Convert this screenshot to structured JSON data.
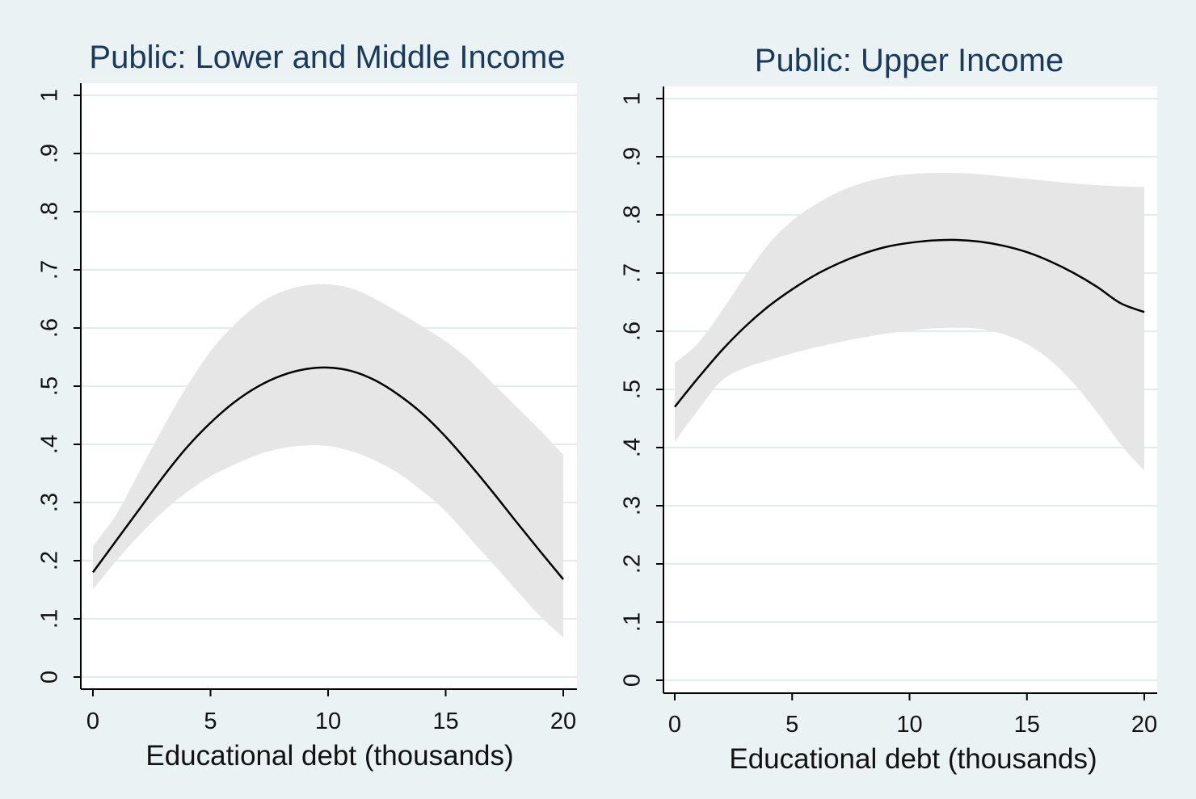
{
  "colors": {
    "background": "#eaf2f3",
    "plot_region": "#ffffff",
    "grid": "#e2ecee",
    "band": "#e6e6e6",
    "line": "#000000",
    "title": "#1a3a5c",
    "axis": "#000000"
  },
  "chart_data": [
    {
      "type": "line",
      "title": "Public: Lower and Middle Income",
      "xlabel": "Educational debt (thousands)",
      "ylabel": "",
      "xlim": [
        0,
        20
      ],
      "ylim": [
        0,
        1
      ],
      "x_ticks": [
        0,
        5,
        10,
        15,
        20
      ],
      "x_tick_labels": [
        "0",
        "5",
        "10",
        "15",
        "20"
      ],
      "y_ticks": [
        0,
        0.1,
        0.2,
        0.3,
        0.4,
        0.5,
        0.6,
        0.7,
        0.8,
        0.9,
        1
      ],
      "y_tick_labels": [
        "0",
        ".1",
        ".2",
        ".3",
        ".4",
        ".5",
        ".6",
        ".7",
        ".8",
        ".9",
        "1"
      ],
      "grid": true,
      "x": [
        0,
        1,
        2,
        3,
        4,
        5,
        6,
        7,
        8,
        9,
        10,
        11,
        12,
        13,
        14,
        15,
        16,
        17,
        18,
        19,
        20
      ],
      "series": [
        {
          "name": "estimate",
          "values": [
            0.18,
            0.235,
            0.29,
            0.345,
            0.395,
            0.437,
            0.472,
            0.499,
            0.518,
            0.529,
            0.532,
            0.526,
            0.51,
            0.485,
            0.453,
            0.413,
            0.367,
            0.318,
            0.267,
            0.217,
            0.168
          ]
        },
        {
          "name": "upper",
          "values": [
            0.225,
            0.28,
            0.355,
            0.43,
            0.5,
            0.56,
            0.605,
            0.64,
            0.662,
            0.673,
            0.675,
            0.668,
            0.65,
            0.627,
            0.603,
            0.577,
            0.545,
            0.505,
            0.465,
            0.425,
            0.382
          ]
        },
        {
          "name": "lower",
          "values": [
            0.15,
            0.2,
            0.245,
            0.285,
            0.318,
            0.345,
            0.365,
            0.382,
            0.393,
            0.398,
            0.397,
            0.388,
            0.372,
            0.35,
            0.32,
            0.285,
            0.24,
            0.195,
            0.15,
            0.105,
            0.068
          ]
        }
      ]
    },
    {
      "type": "line",
      "title": "Public: Upper Income",
      "xlabel": "Educational debt (thousands)",
      "ylabel": "",
      "xlim": [
        0,
        20
      ],
      "ylim": [
        0,
        1
      ],
      "x_ticks": [
        0,
        5,
        10,
        15,
        20
      ],
      "x_tick_labels": [
        "0",
        "5",
        "10",
        "15",
        "20"
      ],
      "y_ticks": [
        0,
        0.1,
        0.2,
        0.3,
        0.4,
        0.5,
        0.6,
        0.7,
        0.8,
        0.9,
        1
      ],
      "y_tick_labels": [
        "0",
        ".1",
        ".2",
        ".3",
        ".4",
        ".5",
        ".6",
        ".7",
        ".8",
        ".9",
        "1"
      ],
      "grid": true,
      "x": [
        0,
        1,
        2,
        3,
        4,
        5,
        6,
        7,
        8,
        9,
        10,
        11,
        12,
        13,
        14,
        15,
        16,
        17,
        18,
        19,
        20
      ],
      "series": [
        {
          "name": "estimate",
          "values": [
            0.47,
            0.52,
            0.567,
            0.608,
            0.643,
            0.672,
            0.697,
            0.717,
            0.733,
            0.745,
            0.752,
            0.756,
            0.757,
            0.754,
            0.747,
            0.736,
            0.72,
            0.7,
            0.676,
            0.648,
            0.633
          ]
        },
        {
          "name": "upper",
          "values": [
            0.545,
            0.58,
            0.635,
            0.695,
            0.75,
            0.79,
            0.818,
            0.84,
            0.855,
            0.865,
            0.87,
            0.872,
            0.872,
            0.87,
            0.866,
            0.862,
            0.858,
            0.854,
            0.851,
            0.849,
            0.848
          ]
        },
        {
          "name": "lower",
          "values": [
            0.41,
            0.465,
            0.515,
            0.537,
            0.55,
            0.562,
            0.572,
            0.581,
            0.589,
            0.596,
            0.601,
            0.605,
            0.606,
            0.604,
            0.595,
            0.578,
            0.55,
            0.51,
            0.46,
            0.405,
            0.36
          ]
        }
      ]
    }
  ]
}
